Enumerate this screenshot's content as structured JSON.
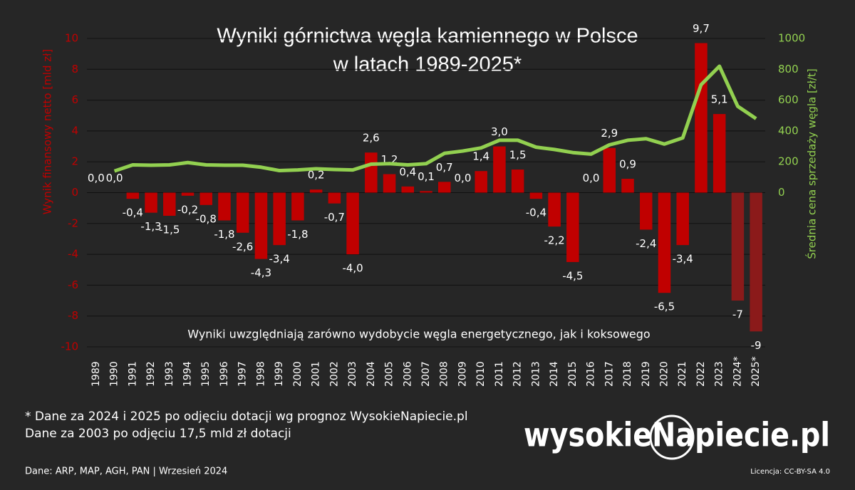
{
  "chart_data": {
    "type": "bar",
    "title": [
      "Wyniki górnictwa węgla kamiennego w Polsce",
      "w latach 1989-2025*"
    ],
    "y_label": "Wynik finansowy netto [mld zł]",
    "y2_label": "Średnia cena sprzedaży węgla [zł/t]",
    "annotation": "Wyniki uwzględniają zarówno wydobycie węgla energetycznego, jak i koksowego",
    "categories": [
      "1989",
      "1990",
      "1991",
      "1992",
      "1993",
      "1994",
      "1995",
      "1996",
      "1997",
      "1998",
      "1999",
      "2000",
      "2001",
      "2002",
      "2003",
      "2004",
      "2005",
      "2006",
      "2007",
      "2008",
      "2009",
      "2010",
      "2011",
      "2012",
      "2013",
      "2014",
      "2015",
      "2016",
      "2017",
      "2018",
      "2019",
      "2020",
      "2021",
      "2022",
      "2023",
      "2024*",
      "2025*"
    ],
    "ylim": [
      -10,
      10
    ],
    "yticks": [
      -10,
      -8,
      -6,
      -4,
      -2,
      0,
      2,
      4,
      6,
      8,
      10
    ],
    "y2lim": [
      0,
      1000
    ],
    "y2ticks": [
      0,
      200,
      400,
      600,
      800,
      1000
    ],
    "grid": true,
    "series": [
      {
        "name": "Wynik finansowy netto",
        "type": "bar",
        "color": "#c00000",
        "colors": [
          "#c00000",
          "#c00000",
          "#c00000",
          "#c00000",
          "#c00000",
          "#c00000",
          "#c00000",
          "#c00000",
          "#c00000",
          "#c00000",
          "#c00000",
          "#c00000",
          "#c00000",
          "#c00000",
          "#c00000",
          "#c00000",
          "#c00000",
          "#c00000",
          "#c00000",
          "#c00000",
          "#c00000",
          "#c00000",
          "#c00000",
          "#c00000",
          "#c00000",
          "#c00000",
          "#c00000",
          "#c00000",
          "#c00000",
          "#c00000",
          "#c00000",
          "#c00000",
          "#c00000",
          "#c00000",
          "#c00000",
          "#8b1a1a",
          "#8b1a1a"
        ],
        "values": [
          0,
          0,
          -0.4,
          -1.3,
          -1.5,
          -0.2,
          -0.8,
          -1.8,
          -2.6,
          -4.3,
          -3.4,
          -1.8,
          0.2,
          -0.7,
          -4.0,
          2.6,
          1.2,
          0.4,
          0.1,
          0.7,
          0,
          1.4,
          3.0,
          1.5,
          -0.4,
          -2.2,
          -4.5,
          0,
          2.9,
          0.9,
          -2.4,
          -6.5,
          -3.4,
          9.7,
          5.1,
          -7,
          -9
        ],
        "value_labels": [
          "0,0",
          "0,0",
          "-0,4",
          "-1,3",
          "-1,5",
          "-0,2",
          "-0,8",
          "-1,8",
          "-2,6",
          "-4,3",
          "-3,4",
          "-1,8",
          "0,2",
          "-0,7",
          "-4,0",
          "2,6",
          "1,2",
          "0,4",
          "0,1",
          "0,7",
          "0,0",
          "1,4",
          "3,0",
          "1,5",
          "-0,4",
          "-2,2",
          "-4,5",
          "0,0",
          "2,9",
          "0,9",
          "-2,4",
          "-6,5",
          "-3,4",
          "9,7",
          "5,1",
          "-7",
          "-9"
        ]
      },
      {
        "name": "Średnia cena sprzedaży węgla",
        "type": "line",
        "axis": "y2",
        "color": "#92d050",
        "values": [
          null,
          140,
          180,
          178,
          180,
          195,
          180,
          178,
          178,
          165,
          143,
          147,
          155,
          150,
          147,
          185,
          188,
          180,
          188,
          255,
          270,
          290,
          340,
          340,
          295,
          280,
          260,
          250,
          310,
          340,
          350,
          315,
          355,
          700,
          820,
          560,
          480
        ]
      }
    ]
  },
  "notes": [
    "* Dane za 2024 i 2025 po odjęciu dotacji wg prognoz WysokieNapiecie.pl",
    "Dane za 2003 po odjęciu 17,5 mld zł dotacji"
  ],
  "source": "Dane: ARP, MAP, AGH, PAN  |  Wrzesień 2024",
  "logo": "wysokieNapiecie.pl",
  "license": "Licencja: CC-BY-SA 4.0"
}
